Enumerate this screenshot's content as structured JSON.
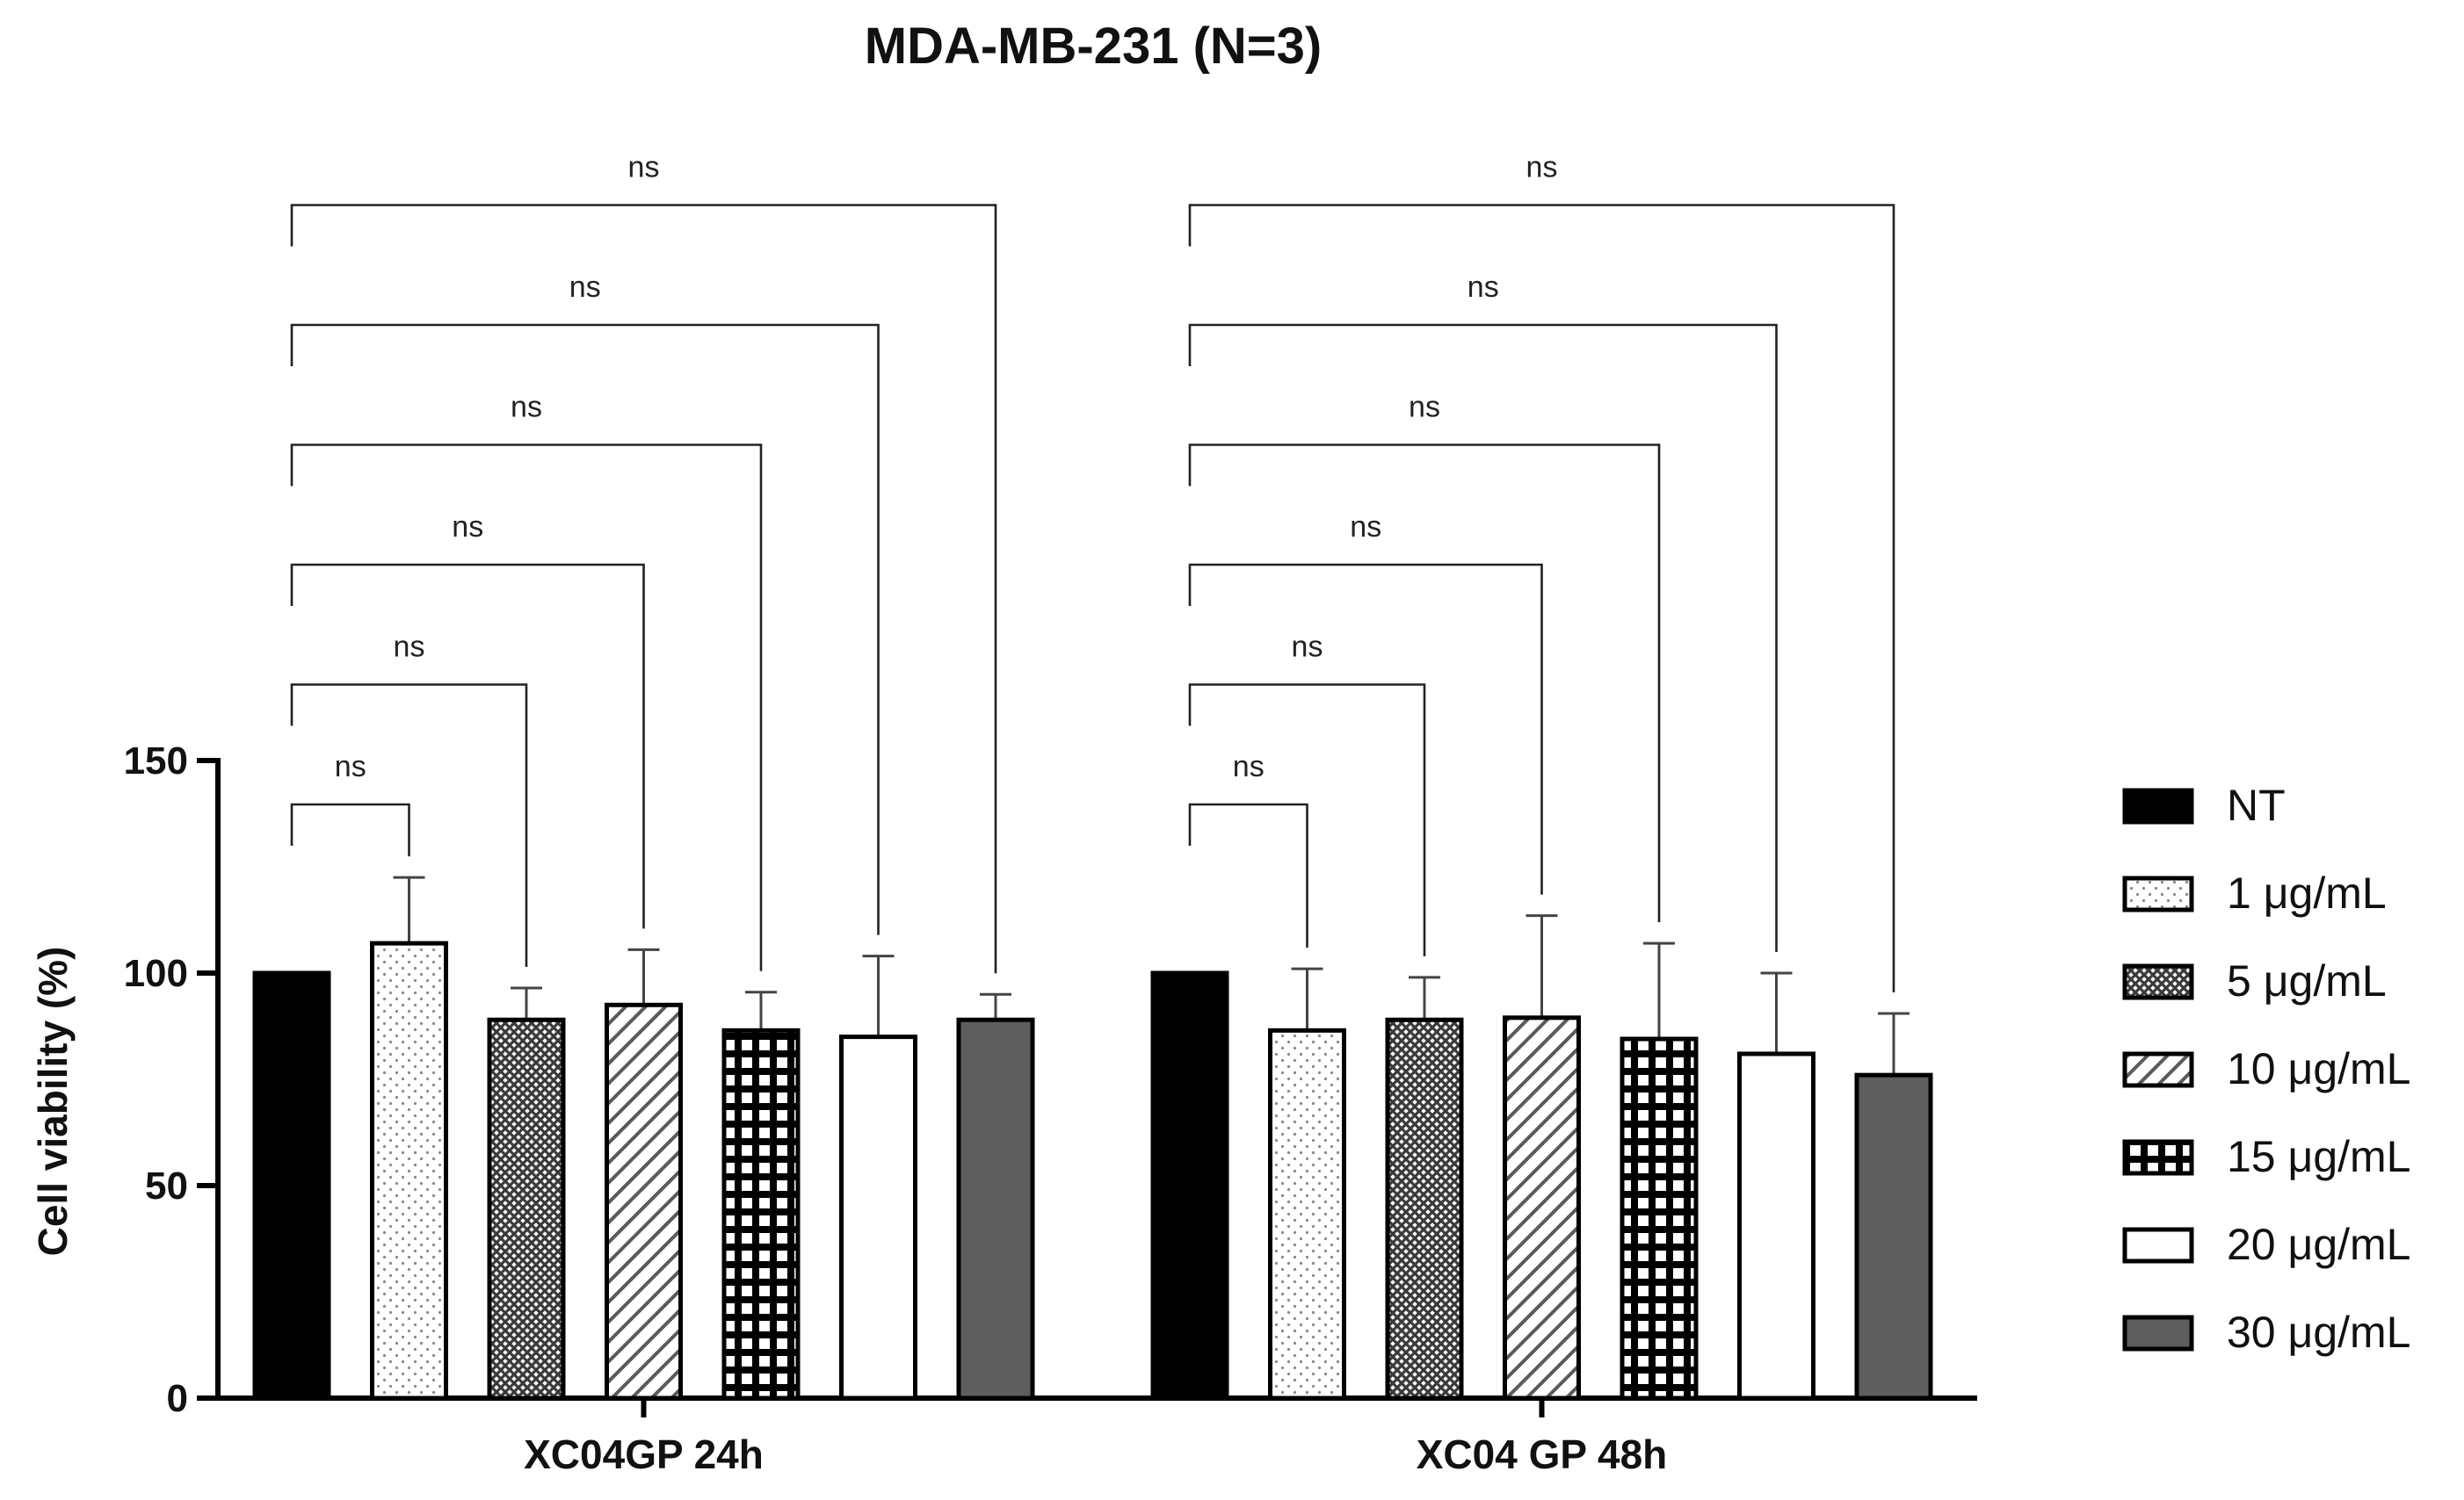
{
  "chart_data": {
    "type": "bar",
    "title": "MDA-MB-231 (N=3)",
    "xlabel": "",
    "ylabel": "Cell viability (%)",
    "ylim": [
      0,
      150
    ],
    "yticks": [
      0,
      50,
      100,
      150
    ],
    "grid": false,
    "legend_position": "right",
    "categories": [
      "XC04GP 24h",
      "XC04 GP 48h"
    ],
    "series": [
      {
        "name": "NT",
        "pattern": "solid-black",
        "values": [
          100,
          100
        ],
        "errors": [
          0,
          0
        ]
      },
      {
        "name": "1 μg/mL",
        "pattern": "dots",
        "values": [
          107,
          86.5
        ],
        "errors": [
          15.5,
          14.5
        ]
      },
      {
        "name": "5 μg/mL",
        "pattern": "crosshatch",
        "values": [
          89,
          89
        ],
        "errors": [
          7.5,
          10
        ]
      },
      {
        "name": "10 μg/mL",
        "pattern": "diagonal",
        "values": [
          92.5,
          89.5
        ],
        "errors": [
          13,
          24
        ]
      },
      {
        "name": "15 μg/mL",
        "pattern": "grid",
        "values": [
          86.5,
          84.5
        ],
        "errors": [
          9,
          22.5
        ]
      },
      {
        "name": "20 μg/mL",
        "pattern": "white",
        "values": [
          85,
          81
        ],
        "errors": [
          19,
          19
        ]
      },
      {
        "name": "30 μg/mL",
        "pattern": "solid-gray",
        "values": [
          89,
          76
        ],
        "errors": [
          6,
          14.5
        ]
      }
    ],
    "annotations": {
      "comparison_label": "ns",
      "comparisons": [
        {
          "group": 0,
          "from": "NT",
          "to": "1 μg/mL",
          "label": "ns"
        },
        {
          "group": 0,
          "from": "NT",
          "to": "5 μg/mL",
          "label": "ns"
        },
        {
          "group": 0,
          "from": "NT",
          "to": "10 μg/mL",
          "label": "ns"
        },
        {
          "group": 0,
          "from": "NT",
          "to": "15 μg/mL",
          "label": "ns"
        },
        {
          "group": 0,
          "from": "NT",
          "to": "20 μg/mL",
          "label": "ns"
        },
        {
          "group": 0,
          "from": "NT",
          "to": "30 μg/mL",
          "label": "ns"
        },
        {
          "group": 1,
          "from": "NT",
          "to": "1 μg/mL",
          "label": "ns"
        },
        {
          "group": 1,
          "from": "NT",
          "to": "5 μg/mL",
          "label": "ns"
        },
        {
          "group": 1,
          "from": "NT",
          "to": "10 μg/mL",
          "label": "ns"
        },
        {
          "group": 1,
          "from": "NT",
          "to": "15 μg/mL",
          "label": "ns"
        },
        {
          "group": 1,
          "from": "NT",
          "to": "20 μg/mL",
          "label": "ns"
        },
        {
          "group": 1,
          "from": "NT",
          "to": "30 μg/mL",
          "label": "ns"
        }
      ]
    },
    "colors": {
      "black": "#000000",
      "gray": "#5e5e5e",
      "hatch": "#3a3a3a",
      "dot": "#8a8a8a"
    }
  }
}
